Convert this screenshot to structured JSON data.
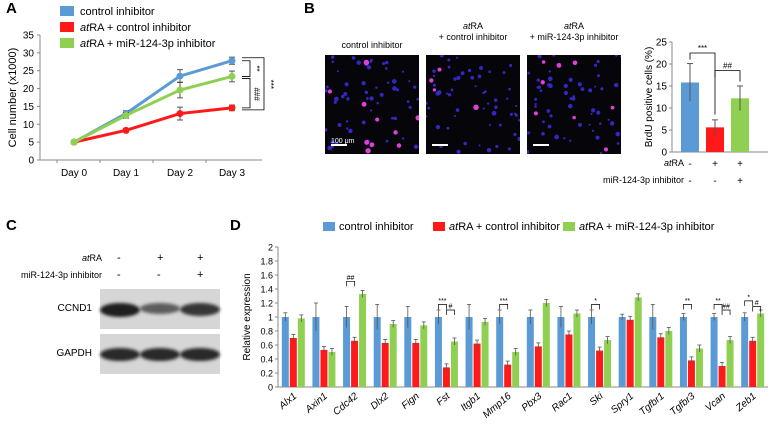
{
  "panels": {
    "a": "A",
    "b": "B",
    "c": "C",
    "d": "D"
  },
  "colors": {
    "control": "#5b9bd5",
    "atra": "#ff1a1a",
    "mir": "#8fd053"
  },
  "chart_data": [
    {
      "type": "line",
      "panel": "A",
      "ylabel": "Cell number (x1000)",
      "yticks": [
        "0",
        "5",
        "10",
        "15",
        "20",
        "25",
        "30",
        "35"
      ],
      "ylim": [
        0,
        35
      ],
      "categories": [
        "Day 0",
        "Day 1",
        "Day 2",
        "Day 3"
      ],
      "series": [
        {
          "name": "control inhibitor",
          "values": [
            5,
            13,
            23.5,
            27.8
          ],
          "errors": [
            0,
            0.8,
            1.8,
            1.0
          ]
        },
        {
          "name": "atRA + control inhibitor",
          "values": [
            5,
            8.3,
            13,
            14.6
          ],
          "errors": [
            0,
            0.5,
            1.8,
            0.8
          ]
        },
        {
          "name": "atRA + miR-124-3p inhibitor",
          "values": [
            5,
            12.5,
            19.6,
            23.4
          ],
          "errors": [
            0,
            0.8,
            2.2,
            1.5
          ]
        }
      ],
      "legend": [
        {
          "prefix": "",
          "italic": "",
          "suffix": "control inhibitor"
        },
        {
          "prefix": "",
          "italic": "at",
          "suffix": "RA + control inhibitor"
        },
        {
          "prefix": "",
          "italic": "at",
          "suffix": "RA + miR-124-3p inhibitor"
        }
      ],
      "sig": [
        "**",
        "###",
        "***"
      ]
    },
    {
      "type": "bar",
      "panel": "B",
      "ylabel": "BrdU positive cells (%)",
      "yticks": [
        "0",
        "5",
        "10",
        "15",
        "20",
        "25"
      ],
      "ylim": [
        0,
        25
      ],
      "values": [
        15.8,
        5.6,
        12.2
      ],
      "errors": [
        4.3,
        1.7,
        2.8
      ],
      "sig": [
        "***",
        "##"
      ],
      "row_labels": {
        "atra": "atRA",
        "mir": "miR-124-3p inhibitor"
      },
      "row_signs": {
        "atra": [
          "-",
          "+",
          "+"
        ],
        "mir": [
          "-",
          "-",
          "+"
        ]
      }
    },
    {
      "type": "bar",
      "panel": "D",
      "ylabel": "Relative expression",
      "yticks": [
        "0",
        "0.2",
        "0.4",
        "0.6",
        "0.8",
        "1",
        "1.2",
        "1.4",
        "1.6",
        "1.8",
        "2"
      ],
      "ylim": [
        0,
        2
      ],
      "categories": [
        "Alx1",
        "Axin1",
        "Cdc42",
        "Dlx2",
        "Fign",
        "Fst",
        "Itgb1",
        "Mmp16",
        "Pbx3",
        "Rac1",
        "Ski",
        "Spry1",
        "Tgfbr1",
        "Tgfbr3",
        "Vcan",
        "Zeb1"
      ],
      "series": [
        {
          "name": "control inhibitor",
          "values": [
            1,
            1,
            1,
            1,
            1,
            1,
            1,
            1,
            1,
            1,
            1,
            1,
            1,
            1,
            1,
            1
          ],
          "errors": [
            0.06,
            0.2,
            0.15,
            0.18,
            0.15,
            0.1,
            0.18,
            0.1,
            0.1,
            0.15,
            0.1,
            0.04,
            0.18,
            0.05,
            0.05,
            0.06
          ]
        },
        {
          "name": "atRA + control inhibitor",
          "values": [
            0.7,
            0.53,
            0.66,
            0.63,
            0.63,
            0.28,
            0.62,
            0.32,
            0.58,
            0.75,
            0.52,
            0.96,
            0.71,
            0.38,
            0.3,
            0.66
          ]
        },
        {
          "name": "atRA + miR-124-3p inhibitor",
          "values": [
            0.98,
            0.5,
            1.33,
            0.9,
            0.88,
            0.65,
            0.93,
            0.5,
            1.2,
            1.05,
            0.67,
            1.28,
            0.8,
            0.55,
            0.67,
            1.05
          ]
        }
      ],
      "sig": [
        {
          "gene": "Cdc42",
          "text": "##"
        },
        {
          "gene": "Fst",
          "text": "***"
        },
        {
          "gene": "Fst",
          "text": "#"
        },
        {
          "gene": "Mmp16",
          "text": "***"
        },
        {
          "gene": "Ski",
          "text": "*"
        },
        {
          "gene": "Tgfbr3",
          "text": "**"
        },
        {
          "gene": "Vcan",
          "text": "**"
        },
        {
          "gene": "Vcan",
          "text": "##"
        },
        {
          "gene": "Zeb1",
          "text": "*"
        },
        {
          "gene": "Zeb1",
          "text": "#"
        }
      ]
    }
  ],
  "micrographs": [
    {
      "line1": "control inhibitor",
      "line1_italic": "",
      "line2": ""
    },
    {
      "line1": "RA",
      "line1_italic": "at",
      "line2": "+ control inhibitor"
    },
    {
      "line1": "RA",
      "line1_italic": "at",
      "line2": "+ miR-124-3p inhibitor"
    }
  ],
  "scale_bar": "100 μm",
  "western": {
    "atra_label": "RA",
    "atra_italic": "at",
    "mir_label": "miR-124-3p inhibitor",
    "atra_signs": [
      "-",
      "+",
      "+"
    ],
    "mir_signs": [
      "-",
      "-",
      "+"
    ],
    "bands": [
      "CCND1",
      "GAPDH"
    ]
  }
}
